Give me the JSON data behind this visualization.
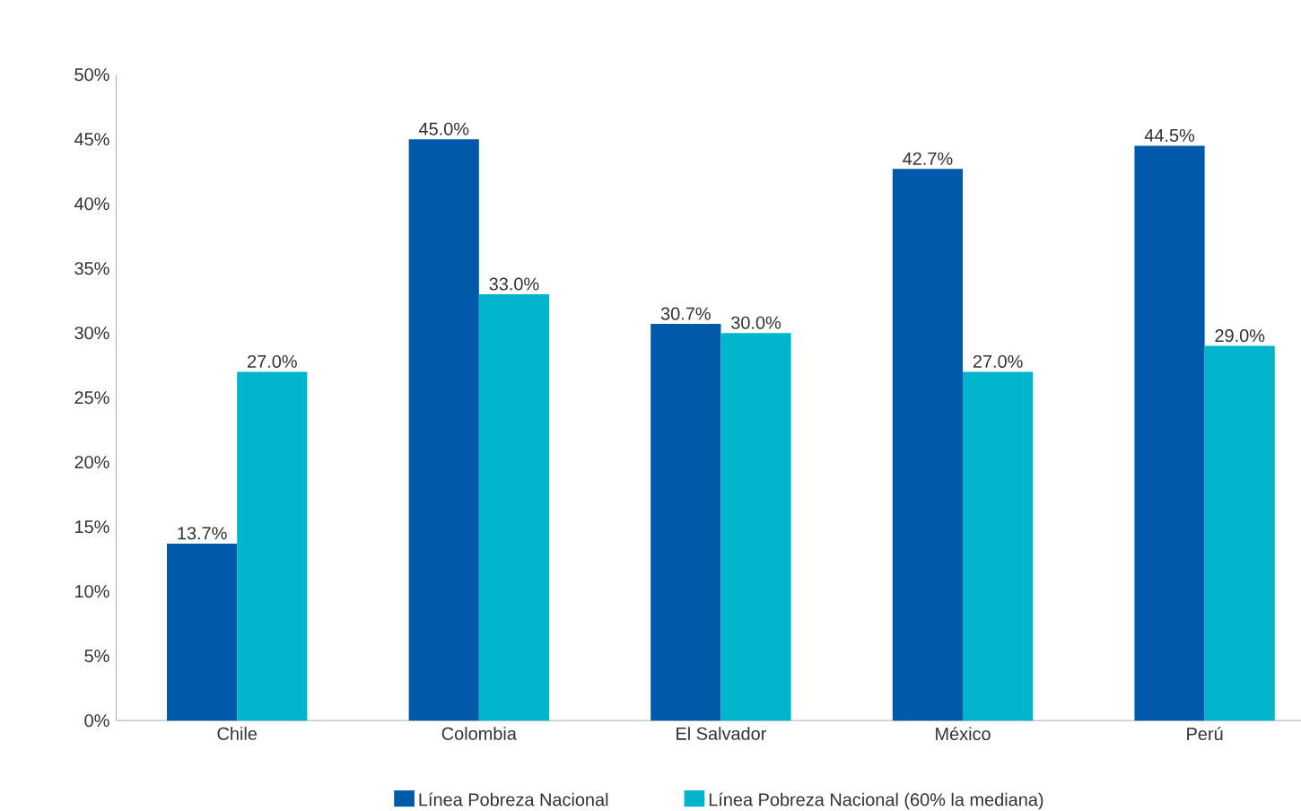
{
  "chart_data": {
    "type": "bar",
    "categories": [
      "Chile",
      "Colombia",
      "El Salvador",
      "México",
      "Perú"
    ],
    "series": [
      {
        "name": "Línea Pobreza Nacional",
        "color": "#005aa9",
        "values": [
          13.7,
          45.0,
          30.7,
          42.7,
          44.5
        ],
        "value_labels": [
          "13.7%",
          "45.0%",
          "30.7%",
          "42.7%",
          "44.5%"
        ]
      },
      {
        "name": "Línea Pobreza Nacional (60% la mediana)",
        "color": "#00b5cc",
        "values": [
          27.0,
          33.0,
          30.0,
          27.0,
          29.0
        ],
        "value_labels": [
          "27.0%",
          "33.0%",
          "30.0%",
          "27.0%",
          "29.0%"
        ]
      }
    ],
    "ylim": [
      0,
      50
    ],
    "yticks": [
      {
        "value": 0,
        "label": "0%"
      },
      {
        "value": 5,
        "label": "5%"
      },
      {
        "value": 10,
        "label": "10%"
      },
      {
        "value": 15,
        "label": "15%"
      },
      {
        "value": 20,
        "label": "20%"
      },
      {
        "value": 25,
        "label": "25%"
      },
      {
        "value": 30,
        "label": "30%"
      },
      {
        "value": 35,
        "label": "35%"
      },
      {
        "value": 40,
        "label": "40%"
      },
      {
        "value": 45,
        "label": "45%"
      },
      {
        "value": 50,
        "label": "50%"
      }
    ],
    "grid": false,
    "legend": "bottom"
  }
}
